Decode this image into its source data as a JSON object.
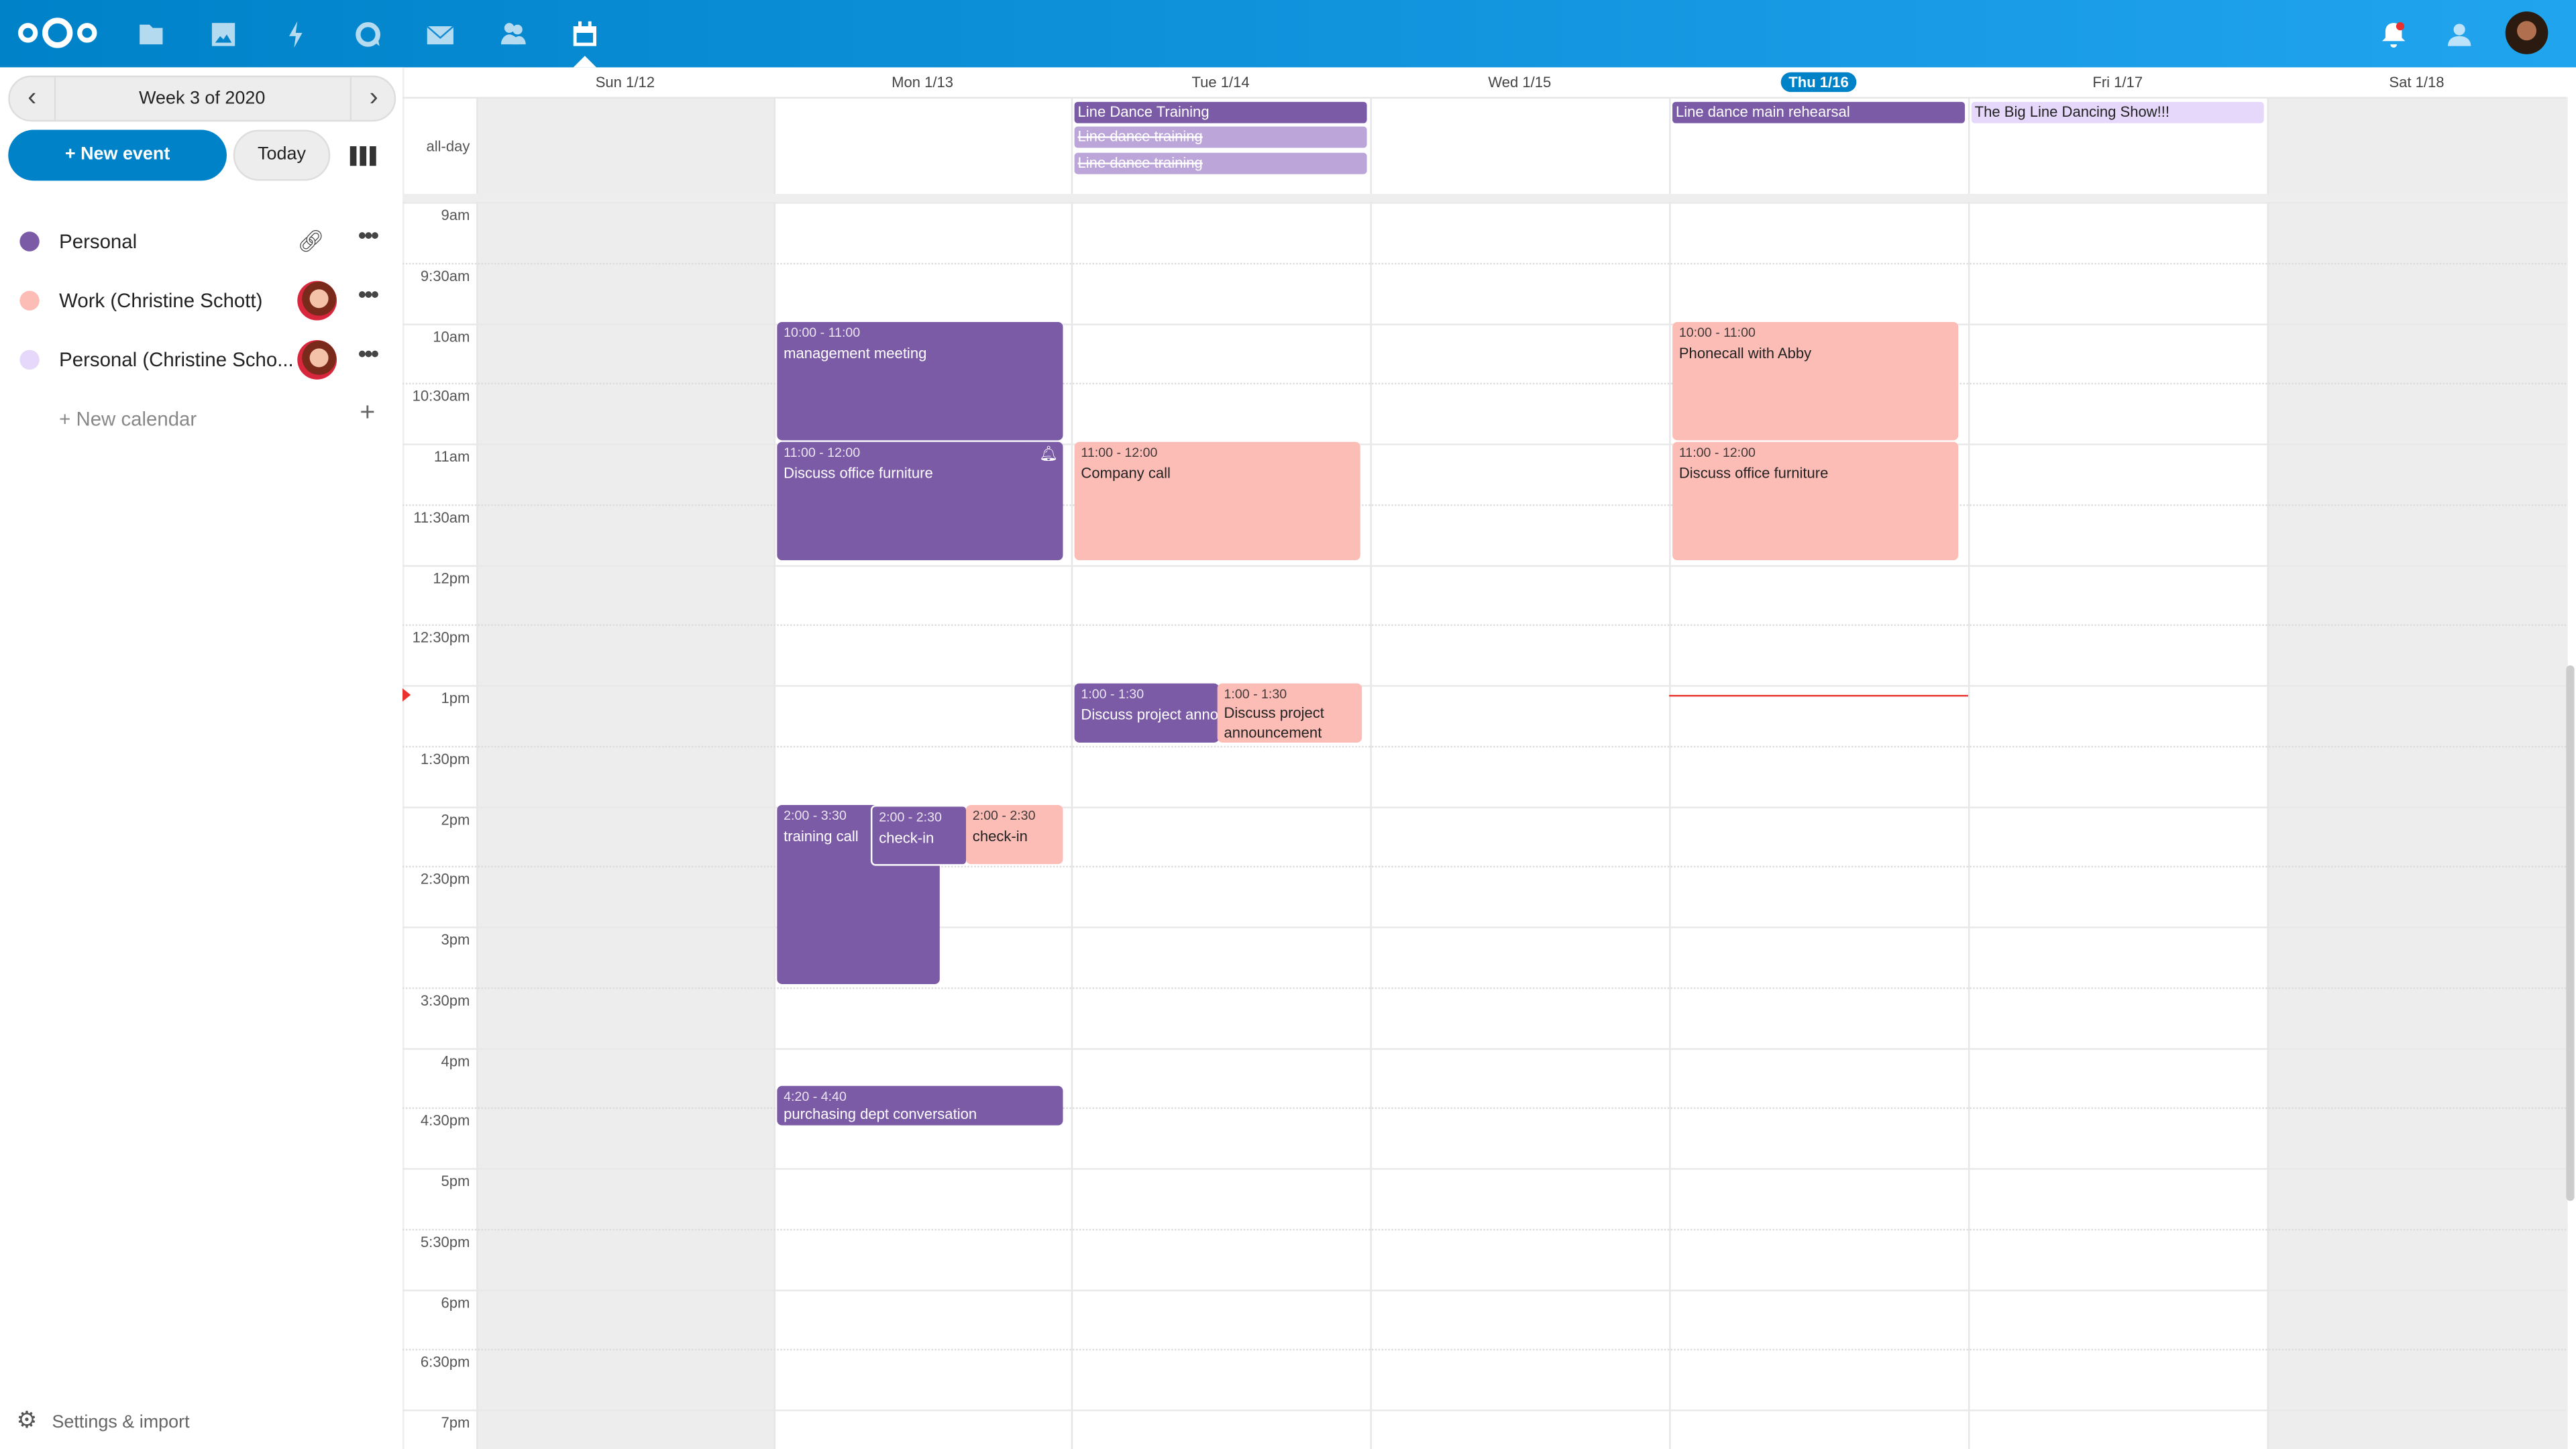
{
  "topbar": {
    "apps": [
      "logo-icon",
      "files-icon",
      "photos-icon",
      "activity-icon",
      "talk-icon",
      "mail-icon",
      "contacts-icon",
      "calendar-icon"
    ],
    "active": "calendar-icon"
  },
  "sidebar": {
    "week_label": "Week 3 of 2020",
    "new_event": "+ New event",
    "today": "Today",
    "calendars": [
      {
        "name": "Personal",
        "color": "#7b5aa6"
      },
      {
        "name": "Work (Christine Schott)",
        "color": "#fdbdb7"
      },
      {
        "name": "Personal (Christine Scho...",
        "color": "#e5d8fb"
      }
    ],
    "new_calendar": "+ New calendar",
    "settings": "Settings & import"
  },
  "days": [
    "Sun 1/12",
    "Mon 1/13",
    "Tue 1/14",
    "Wed 1/15",
    "Thu 1/16",
    "Fri 1/17",
    "Sat 1/18"
  ],
  "today": "Thu 1/16",
  "allday_label": "all-day",
  "times": [
    "9am",
    "9:30am",
    "10am",
    "10:30am",
    "11am",
    "11:30am",
    "12pm",
    "12:30pm",
    "1pm",
    "1:30pm",
    "2pm",
    "2:30pm",
    "3pm",
    "3:30pm",
    "4pm",
    "4:30pm",
    "5pm",
    "5:30pm",
    "6pm",
    "6:30pm",
    "7pm"
  ],
  "allday_events": [
    {
      "day": "Tue 1/14",
      "title": "Line Dance Training"
    },
    {
      "day": "Tue 1/14",
      "title": "Line dance training",
      "cancelled": true
    },
    {
      "day": "Tue 1/14",
      "title": "Line dance training",
      "cancelled": true
    },
    {
      "day": "Thu 1/16",
      "title": "Line dance main rehearsal"
    },
    {
      "day": "Fri 1/17",
      "title": "The Big Line Dancing Show!!!"
    }
  ],
  "events": [
    {
      "day": "Mon 1/13",
      "time": "10:00 - 11:00",
      "title": "management meeting",
      "calendar": "Personal"
    },
    {
      "day": "Mon 1/13",
      "time": "11:00 - 12:00",
      "title": "Discuss office furniture",
      "calendar": "Personal",
      "reminder": true
    },
    {
      "day": "Tue 1/14",
      "time": "11:00 - 12:00",
      "title": "Company call",
      "calendar": "Work (Christine Schott)"
    },
    {
      "day": "Thu 1/16",
      "time": "10:00 - 11:00",
      "title": "Phonecall with Abby",
      "calendar": "Work (Christine Schott)"
    },
    {
      "day": "Thu 1/16",
      "time": "11:00 - 12:00",
      "title": "Discuss office furniture",
      "calendar": "Work (Christine Schott)"
    },
    {
      "day": "Tue 1/14",
      "time": "1:00 - 1:30",
      "title": "Discuss project announcement",
      "calendar": "Personal"
    },
    {
      "day": "Tue 1/14",
      "time": "1:00 - 1:30",
      "title": "Discuss project announcement",
      "calendar": "Work (Christine Schott)"
    },
    {
      "day": "Mon 1/13",
      "time": "2:00 - 3:30",
      "title": "training call",
      "calendar": "Personal"
    },
    {
      "day": "Mon 1/13",
      "time": "2:00 - 2:30",
      "title": "check-in",
      "calendar": "Personal"
    },
    {
      "day": "Mon 1/13",
      "time": "2:00 - 2:30",
      "title": "check-in",
      "calendar": "Work (Christine Schott)"
    },
    {
      "day": "Mon 1/13",
      "time": "4:20 - 4:40",
      "title": "purchasing dept conversation",
      "calendar": "Personal"
    }
  ]
}
